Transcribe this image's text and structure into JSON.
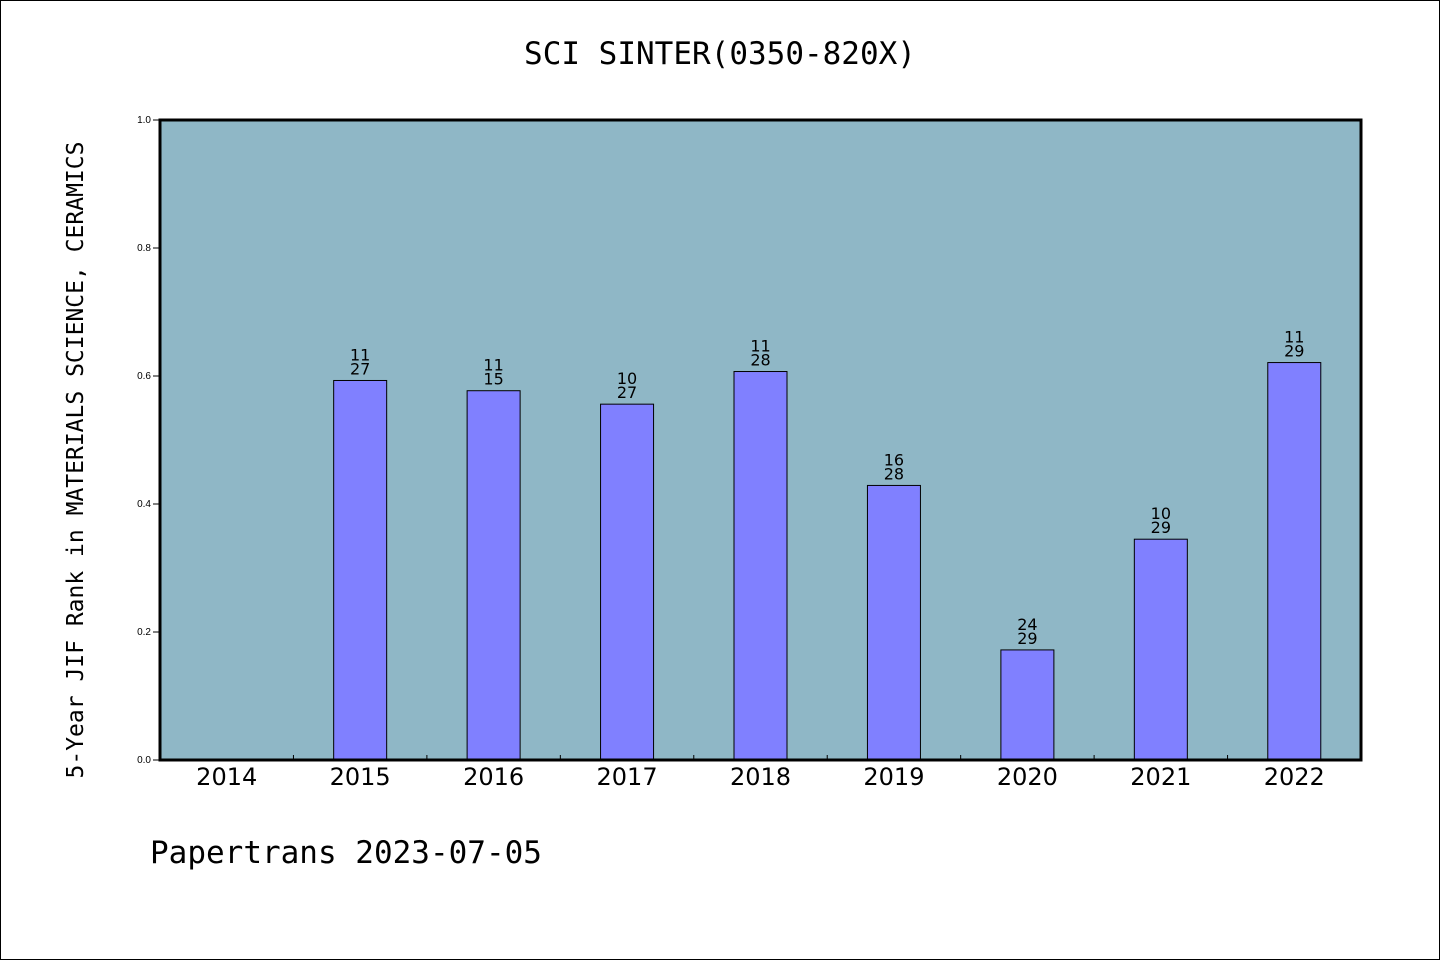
{
  "chart_data": {
    "type": "bar",
    "title": "SCI SINTER(0350-820X)",
    "ylabel": "5-Year JIF Rank in MATERIALS SCIENCE, CERAMICS",
    "xlabel": "",
    "categories": [
      "2014",
      "2015",
      "2016",
      "2017",
      "2018",
      "2019",
      "2020",
      "2021",
      "2022"
    ],
    "values": [
      null,
      0.593,
      0.577,
      0.556,
      0.607,
      0.429,
      0.172,
      0.345,
      0.621
    ],
    "labels_top": [
      "",
      "11",
      "11",
      "10",
      "11",
      "16",
      "24",
      "10",
      "11"
    ],
    "labels_bottom": [
      "",
      "27",
      "15",
      "27",
      "28",
      "28",
      "29",
      "29",
      "29"
    ],
    "ylim": [
      0,
      1.0
    ],
    "yticks": [
      "0.0",
      "0.2",
      "0.4",
      "0.6",
      "0.8",
      "1.0"
    ],
    "grid": false,
    "colors": {
      "plot_bg": "#8fb7c6",
      "bar_fill": "#8080ff",
      "bar_stroke": "#000000"
    }
  },
  "footer": "Papertrans 2023-07-05"
}
